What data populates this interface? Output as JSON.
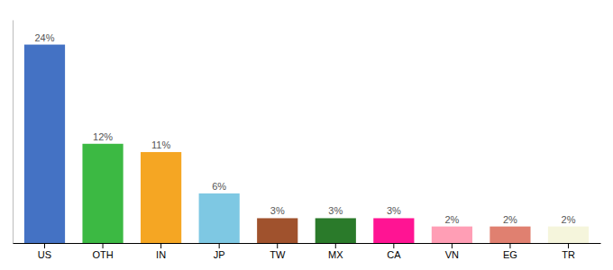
{
  "chart_data": {
    "type": "bar",
    "categories": [
      "US",
      "OTH",
      "IN",
      "JP",
      "TW",
      "MX",
      "CA",
      "VN",
      "EG",
      "TR"
    ],
    "values": [
      24,
      12,
      11,
      6,
      3,
      3,
      3,
      2,
      2,
      2
    ],
    "value_labels": [
      "24%",
      "12%",
      "11%",
      "6%",
      "3%",
      "3%",
      "3%",
      "2%",
      "2%",
      "2%"
    ],
    "colors": [
      "#4472c4",
      "#3cb943",
      "#f5a623",
      "#7ec8e3",
      "#a0522d",
      "#2a7a2a",
      "#ff1493",
      "#ff9eb5",
      "#e08070",
      "#f5f5dc"
    ],
    "ylim": [
      0,
      27
    ],
    "data_labels": true,
    "tick_labels": "x",
    "grid": false
  }
}
